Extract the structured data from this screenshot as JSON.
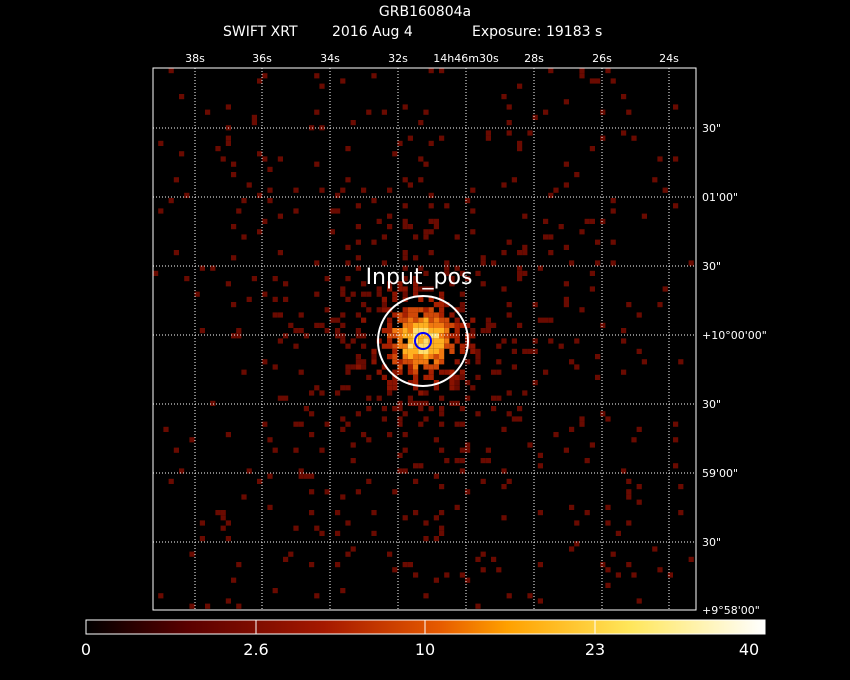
{
  "header": {
    "title": "GRB160804a",
    "instrument": "SWIFT XRT",
    "date": "2016 Aug  4",
    "exposure": "Exposure: 19183 s"
  },
  "axes": {
    "ra_ticks": [
      "38s",
      "36s",
      "34s",
      "32s",
      "14h46m30s",
      "28s",
      "26s",
      "24s"
    ],
    "dec_ticks": [
      "30\"",
      "01'00\"",
      "30\"",
      "+10°00'00\"",
      "30\"",
      "59'00\"",
      "30\"",
      "+9°58'00\""
    ],
    "grid": true
  },
  "source": {
    "label": "Input_pos"
  },
  "colorbar": {
    "ticks": [
      "0",
      "2.6",
      "10",
      "23",
      "40"
    ],
    "colormap": [
      "#000000",
      "#5a0000",
      "#a51800",
      "#e65a00",
      "#ffa000",
      "#ffe65a",
      "#ffffff"
    ]
  },
  "colors": {
    "background": "#000000",
    "grid": "#ffffff",
    "marker_outer": "#ffffff",
    "marker_inner": "#0000ff",
    "text": "#ffffff"
  }
}
